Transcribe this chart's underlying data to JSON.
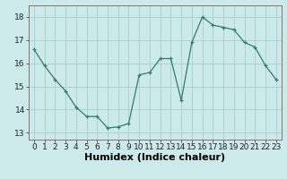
{
  "x": [
    0,
    1,
    2,
    3,
    4,
    5,
    6,
    7,
    8,
    9,
    10,
    11,
    12,
    13,
    14,
    15,
    16,
    17,
    18,
    19,
    20,
    21,
    22,
    23
  ],
  "y": [
    16.6,
    15.9,
    15.3,
    14.8,
    14.1,
    13.7,
    13.7,
    13.2,
    13.25,
    13.4,
    15.5,
    15.6,
    16.2,
    16.2,
    14.4,
    16.9,
    18.0,
    17.65,
    17.55,
    17.45,
    16.9,
    16.7,
    15.9,
    15.3
  ],
  "line_color": "#2e7d6e",
  "marker": "+",
  "markersize": 3,
  "linewidth": 0.9,
  "bg_color": "#cceaea",
  "grid_color": "#aacfcf",
  "xlabel": "Humidex (Indice chaleur)",
  "xlim": [
    -0.5,
    23.5
  ],
  "ylim": [
    12.7,
    18.5
  ],
  "yticks": [
    13,
    14,
    15,
    16,
    17,
    18
  ],
  "xticks": [
    0,
    1,
    2,
    3,
    4,
    5,
    6,
    7,
    8,
    9,
    10,
    11,
    12,
    13,
    14,
    15,
    16,
    17,
    18,
    19,
    20,
    21,
    22,
    23
  ],
  "tick_fontsize": 6.5,
  "xlabel_fontsize": 8,
  "fig_width": 3.2,
  "fig_height": 2.0,
  "dpi": 100
}
